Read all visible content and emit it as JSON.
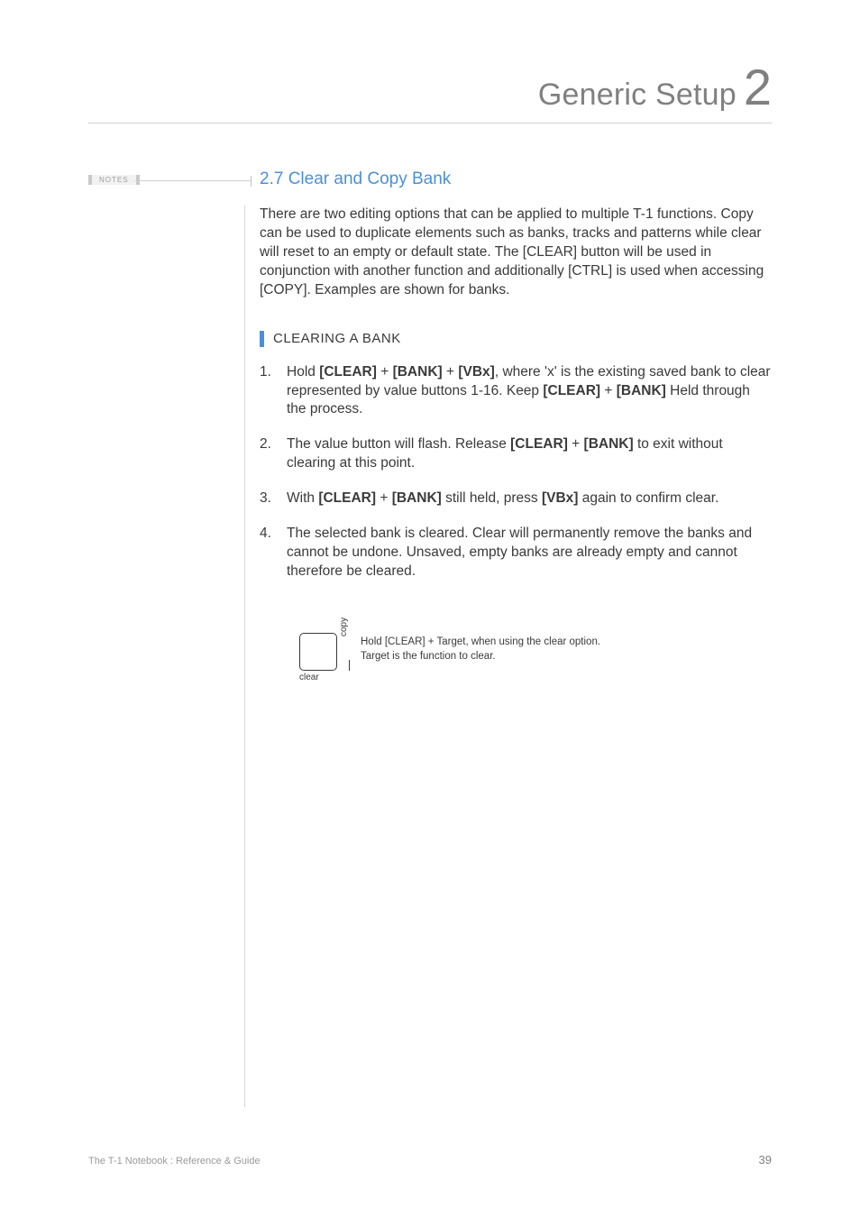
{
  "chapter": {
    "title": "Generic Setup",
    "number": "2"
  },
  "notes_badge": "NOTES",
  "section": {
    "number": "2.7",
    "title": "Clear and Copy Bank"
  },
  "intro": "There are two editing options that can be applied to multiple T-1 functions. Copy can be used to duplicate elements such as banks, tracks and patterns while clear will reset to an empty or default state. The [CLEAR] button will be used in conjunction with another function and additionally [CTRL] is used when accessing [COPY]. Examples are shown for banks.",
  "subheading": "CLEARING A BANK",
  "steps": [
    {
      "pre": "Hold ",
      "k1": "[CLEAR]",
      "mid1": " + ",
      "k2": "[BANK]",
      "mid2": " + ",
      "k3": "[VBx]",
      "post1": ", where 'x' is the existing saved bank to clear represented by value buttons 1-16. Keep ",
      "k4": "[CLEAR]",
      "mid3": " + ",
      "k5": "[BANK]",
      "post2": " Held through the process."
    },
    {
      "pre": "The value button will flash. Release ",
      "k1": "[CLEAR]",
      "mid1": " + ",
      "k2": "[BANK]",
      "post1": " to exit without clearing at this point."
    },
    {
      "pre": "With ",
      "k1": "[CLEAR]",
      "mid1": " + ",
      "k2": "[BANK]",
      "post1": " still held, press ",
      "k3": "[VBx]",
      "post2": " again to confirm clear."
    },
    {
      "pre": "The selected bank is cleared. Clear will permanently remove the banks and cannot be undone. Unsaved, empty banks are already empty and cannot therefore be cleared."
    }
  ],
  "figure": {
    "label_bottom": "clear",
    "label_side": "copy",
    "caption_l1": "Hold [CLEAR] + Target, when using the clear option.",
    "caption_l2": "Target is the function to clear."
  },
  "footer": {
    "left": "The T-1 Notebook : Reference & Guide",
    "page": "39"
  },
  "colors": {
    "accent": "#4a90d9",
    "text": "#3a3a3a",
    "muted": "#808080",
    "rule": "#d0d0d0"
  }
}
